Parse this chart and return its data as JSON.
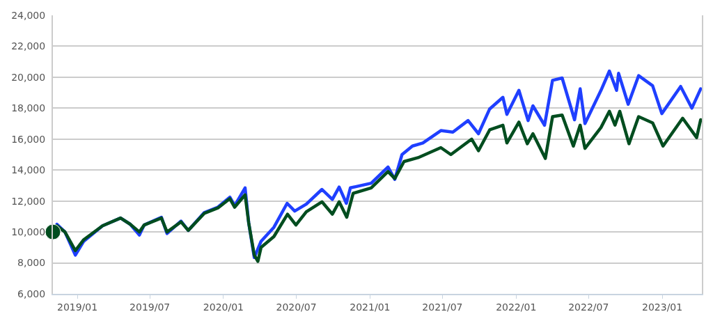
{
  "chart_data": {
    "type": "line",
    "xlim": [
      "2018-11-01",
      "2023-04-10"
    ],
    "xticks": [
      {
        "value": "2019-01-01",
        "label": "2019/01"
      },
      {
        "value": "2019-07-01",
        "label": "2019/07"
      },
      {
        "value": "2020-01-01",
        "label": "2020/01"
      },
      {
        "value": "2020-07-01",
        "label": "2020/07"
      },
      {
        "value": "2021-01-01",
        "label": "2021/01"
      },
      {
        "value": "2021-07-01",
        "label": "2021/07"
      },
      {
        "value": "2022-01-01",
        "label": "2022/01"
      },
      {
        "value": "2022-07-01",
        "label": "2022/07"
      },
      {
        "value": "2023-01-01",
        "label": "2023/01"
      }
    ],
    "ylim": [
      6000,
      24000
    ],
    "yticks": [
      {
        "value": 6000,
        "label": "6,000"
      },
      {
        "value": 8000,
        "label": "8,000"
      },
      {
        "value": 10000,
        "label": "10,000"
      },
      {
        "value": 12000,
        "label": "12,000"
      },
      {
        "value": 14000,
        "label": "14,000"
      },
      {
        "value": 16000,
        "label": "16,000"
      },
      {
        "value": 18000,
        "label": "18,000"
      },
      {
        "value": 20000,
        "label": "20,000"
      },
      {
        "value": 22000,
        "label": "22,000"
      },
      {
        "value": 24000,
        "label": "24,000"
      }
    ],
    "grid": "y",
    "legend": false,
    "marker": "none",
    "line_style": "solid",
    "series": [
      {
        "color": "#1f3fff",
        "x": [
          "2018-11-01",
          "2018-11-11",
          "2018-12-01",
          "2018-12-27",
          "2019-01-17",
          "2019-03-05",
          "2019-04-19",
          "2019-05-13",
          "2019-06-05",
          "2019-06-17",
          "2019-07-30",
          "2019-08-13",
          "2019-09-17",
          "2019-10-05",
          "2019-11-14",
          "2019-12-18",
          "2020-01-17",
          "2020-01-29",
          "2020-02-24",
          "2020-03-04",
          "2020-03-18",
          "2020-04-04",
          "2020-05-06",
          "2020-06-08",
          "2020-06-27",
          "2020-07-26",
          "2020-09-03",
          "2020-09-29",
          "2020-10-16",
          "2020-11-03",
          "2020-11-13",
          "2021-01-04",
          "2021-02-15",
          "2021-03-04",
          "2021-03-22",
          "2021-04-17",
          "2021-05-13",
          "2021-06-27",
          "2021-07-27",
          "2021-09-03",
          "2021-09-29",
          "2021-10-27",
          "2021-11-29",
          "2021-12-09",
          "2022-01-08",
          "2022-01-31",
          "2022-02-12",
          "2022-03-13",
          "2022-04-02",
          "2022-04-26",
          "2022-05-27",
          "2022-06-10",
          "2022-06-22",
          "2022-08-01",
          "2022-08-22",
          "2022-09-09",
          "2022-09-14",
          "2022-10-08",
          "2022-11-03",
          "2022-12-08",
          "2022-12-31",
          "2023-02-16",
          "2023-03-16",
          "2023-04-07"
        ],
        "values": [
          10000,
          10500,
          10000,
          8500,
          9400,
          10400,
          10900,
          10500,
          9800,
          10450,
          10950,
          9900,
          10700,
          10100,
          11250,
          11600,
          12250,
          11700,
          12850,
          10600,
          8350,
          9400,
          10300,
          11850,
          11350,
          11800,
          12750,
          12100,
          12900,
          11850,
          12850,
          13150,
          14200,
          13400,
          15000,
          15550,
          15750,
          16550,
          16450,
          17200,
          16350,
          17950,
          18700,
          17600,
          19150,
          17200,
          18150,
          16900,
          19800,
          19950,
          17250,
          19250,
          17000,
          19150,
          20400,
          19150,
          20250,
          18250,
          20100,
          19450,
          17650,
          19400,
          18000,
          19250
        ]
      },
      {
        "color": "#004d1f",
        "x": [
          "2018-11-01",
          "2018-11-11",
          "2018-12-01",
          "2018-12-27",
          "2019-01-17",
          "2019-03-05",
          "2019-04-19",
          "2019-05-13",
          "2019-06-05",
          "2019-06-17",
          "2019-07-30",
          "2019-08-13",
          "2019-09-17",
          "2019-10-05",
          "2019-11-14",
          "2019-12-18",
          "2020-01-17",
          "2020-01-29",
          "2020-02-24",
          "2020-03-04",
          "2020-03-18",
          "2020-03-27",
          "2020-04-04",
          "2020-05-06",
          "2020-06-09",
          "2020-06-30",
          "2020-07-26",
          "2020-09-03",
          "2020-09-29",
          "2020-10-16",
          "2020-11-04",
          "2020-11-20",
          "2021-01-04",
          "2021-02-15",
          "2021-03-04",
          "2021-03-27",
          "2021-05-01",
          "2021-06-27",
          "2021-07-22",
          "2021-09-12",
          "2021-09-29",
          "2021-10-27",
          "2021-11-29",
          "2021-12-09",
          "2022-01-08",
          "2022-01-29",
          "2022-02-12",
          "2022-03-15",
          "2022-04-02",
          "2022-04-26",
          "2022-05-24",
          "2022-06-10",
          "2022-06-22",
          "2022-08-01",
          "2022-08-22",
          "2022-09-05",
          "2022-09-17",
          "2022-10-10",
          "2022-11-03",
          "2022-12-08",
          "2023-01-03",
          "2023-02-21",
          "2023-03-28",
          "2023-04-07"
        ],
        "values": [
          10000,
          10400,
          10000,
          8800,
          9500,
          10400,
          10900,
          10500,
          10000,
          10450,
          10900,
          10000,
          10650,
          10100,
          11200,
          11550,
          12150,
          11600,
          12400,
          10600,
          8500,
          8100,
          9000,
          9700,
          11150,
          10450,
          11300,
          11950,
          11150,
          11950,
          10950,
          12500,
          12850,
          13900,
          13450,
          14550,
          14800,
          15450,
          15000,
          16000,
          15250,
          16600,
          16900,
          15750,
          17100,
          15700,
          16350,
          14750,
          17450,
          17550,
          15550,
          16900,
          15400,
          16750,
          17800,
          16900,
          17800,
          15700,
          17450,
          17050,
          15550,
          17350,
          16100,
          17250
        ]
      },
      {
        "type": "scatter",
        "marker": "circle",
        "color": "#004d1f",
        "x": [
          "2018-11-01"
        ],
        "values": [
          10000
        ]
      }
    ]
  }
}
